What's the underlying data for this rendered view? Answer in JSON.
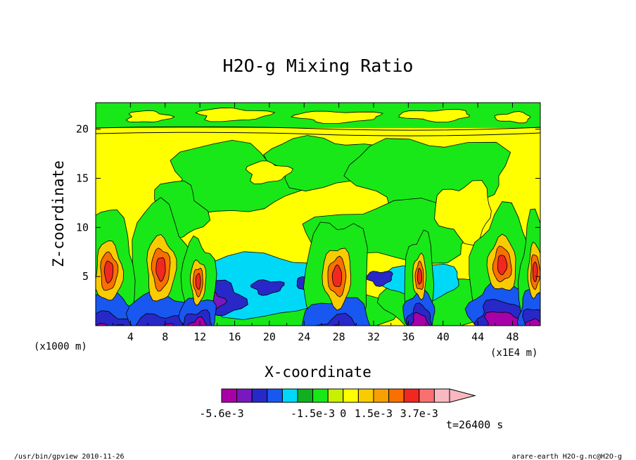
{
  "chart_data": {
    "type": "heatmap",
    "title": "H2O-g Mixing Ratio",
    "xlabel": "X-coordinate",
    "ylabel": "Z-coordinate",
    "x_unit": "(x1E4 m)",
    "y_unit": "(x1000 m)",
    "x_ticks": [
      "4",
      "8",
      "12",
      "16",
      "20",
      "24",
      "28",
      "32",
      "36",
      "40",
      "44",
      "48"
    ],
    "x_tick_values": [
      4,
      8,
      12,
      16,
      20,
      24,
      28,
      32,
      36,
      40,
      44,
      48
    ],
    "y_ticks": [
      "5",
      "10",
      "15",
      "20"
    ],
    "y_tick_values": [
      5,
      10,
      15,
      20
    ],
    "xlim": [
      0,
      51.2
    ],
    "ylim": [
      0,
      22.7
    ],
    "colorbar": {
      "colors": [
        "#a800a8",
        "#a800a8",
        "#7a18c0",
        "#2828c8",
        "#1858f0",
        "#00d8f8",
        "#10b020",
        "#18e818",
        "#c8f000",
        "#ffff00",
        "#f8cc00",
        "#f8a000",
        "#f87000",
        "#f02820",
        "#f87070",
        "#f8b8c0"
      ],
      "tick_labels": [
        "-5.6e-3",
        "-1.5e-3",
        "0",
        "1.5e-3",
        "3.7e-3"
      ],
      "tick_positions": [
        0,
        6,
        8,
        10,
        13
      ],
      "n_boxes": 15
    },
    "plumes": [
      {
        "x": 1.5,
        "z": 5.5,
        "w": 2.8,
        "h": 5.5
      },
      {
        "x": 7.5,
        "z": 5.8,
        "w": 3.0,
        "h": 6.0
      },
      {
        "x": 11.8,
        "z": 4.5,
        "w": 1.6,
        "h": 4.0
      },
      {
        "x": 27.8,
        "z": 5.0,
        "w": 3.0,
        "h": 5.5
      },
      {
        "x": 37.3,
        "z": 5.0,
        "w": 1.4,
        "h": 4.0
      },
      {
        "x": 46.8,
        "z": 6.2,
        "w": 3.0,
        "h": 5.0
      },
      {
        "x": 50.6,
        "z": 5.5,
        "w": 1.5,
        "h": 5.0
      }
    ]
  },
  "time_label": "t=26400 s",
  "footer": {
    "left": "/usr/bin/gpview   2010-11-26",
    "right": "arare-earth_H2O-g.nc@H2O-g"
  }
}
